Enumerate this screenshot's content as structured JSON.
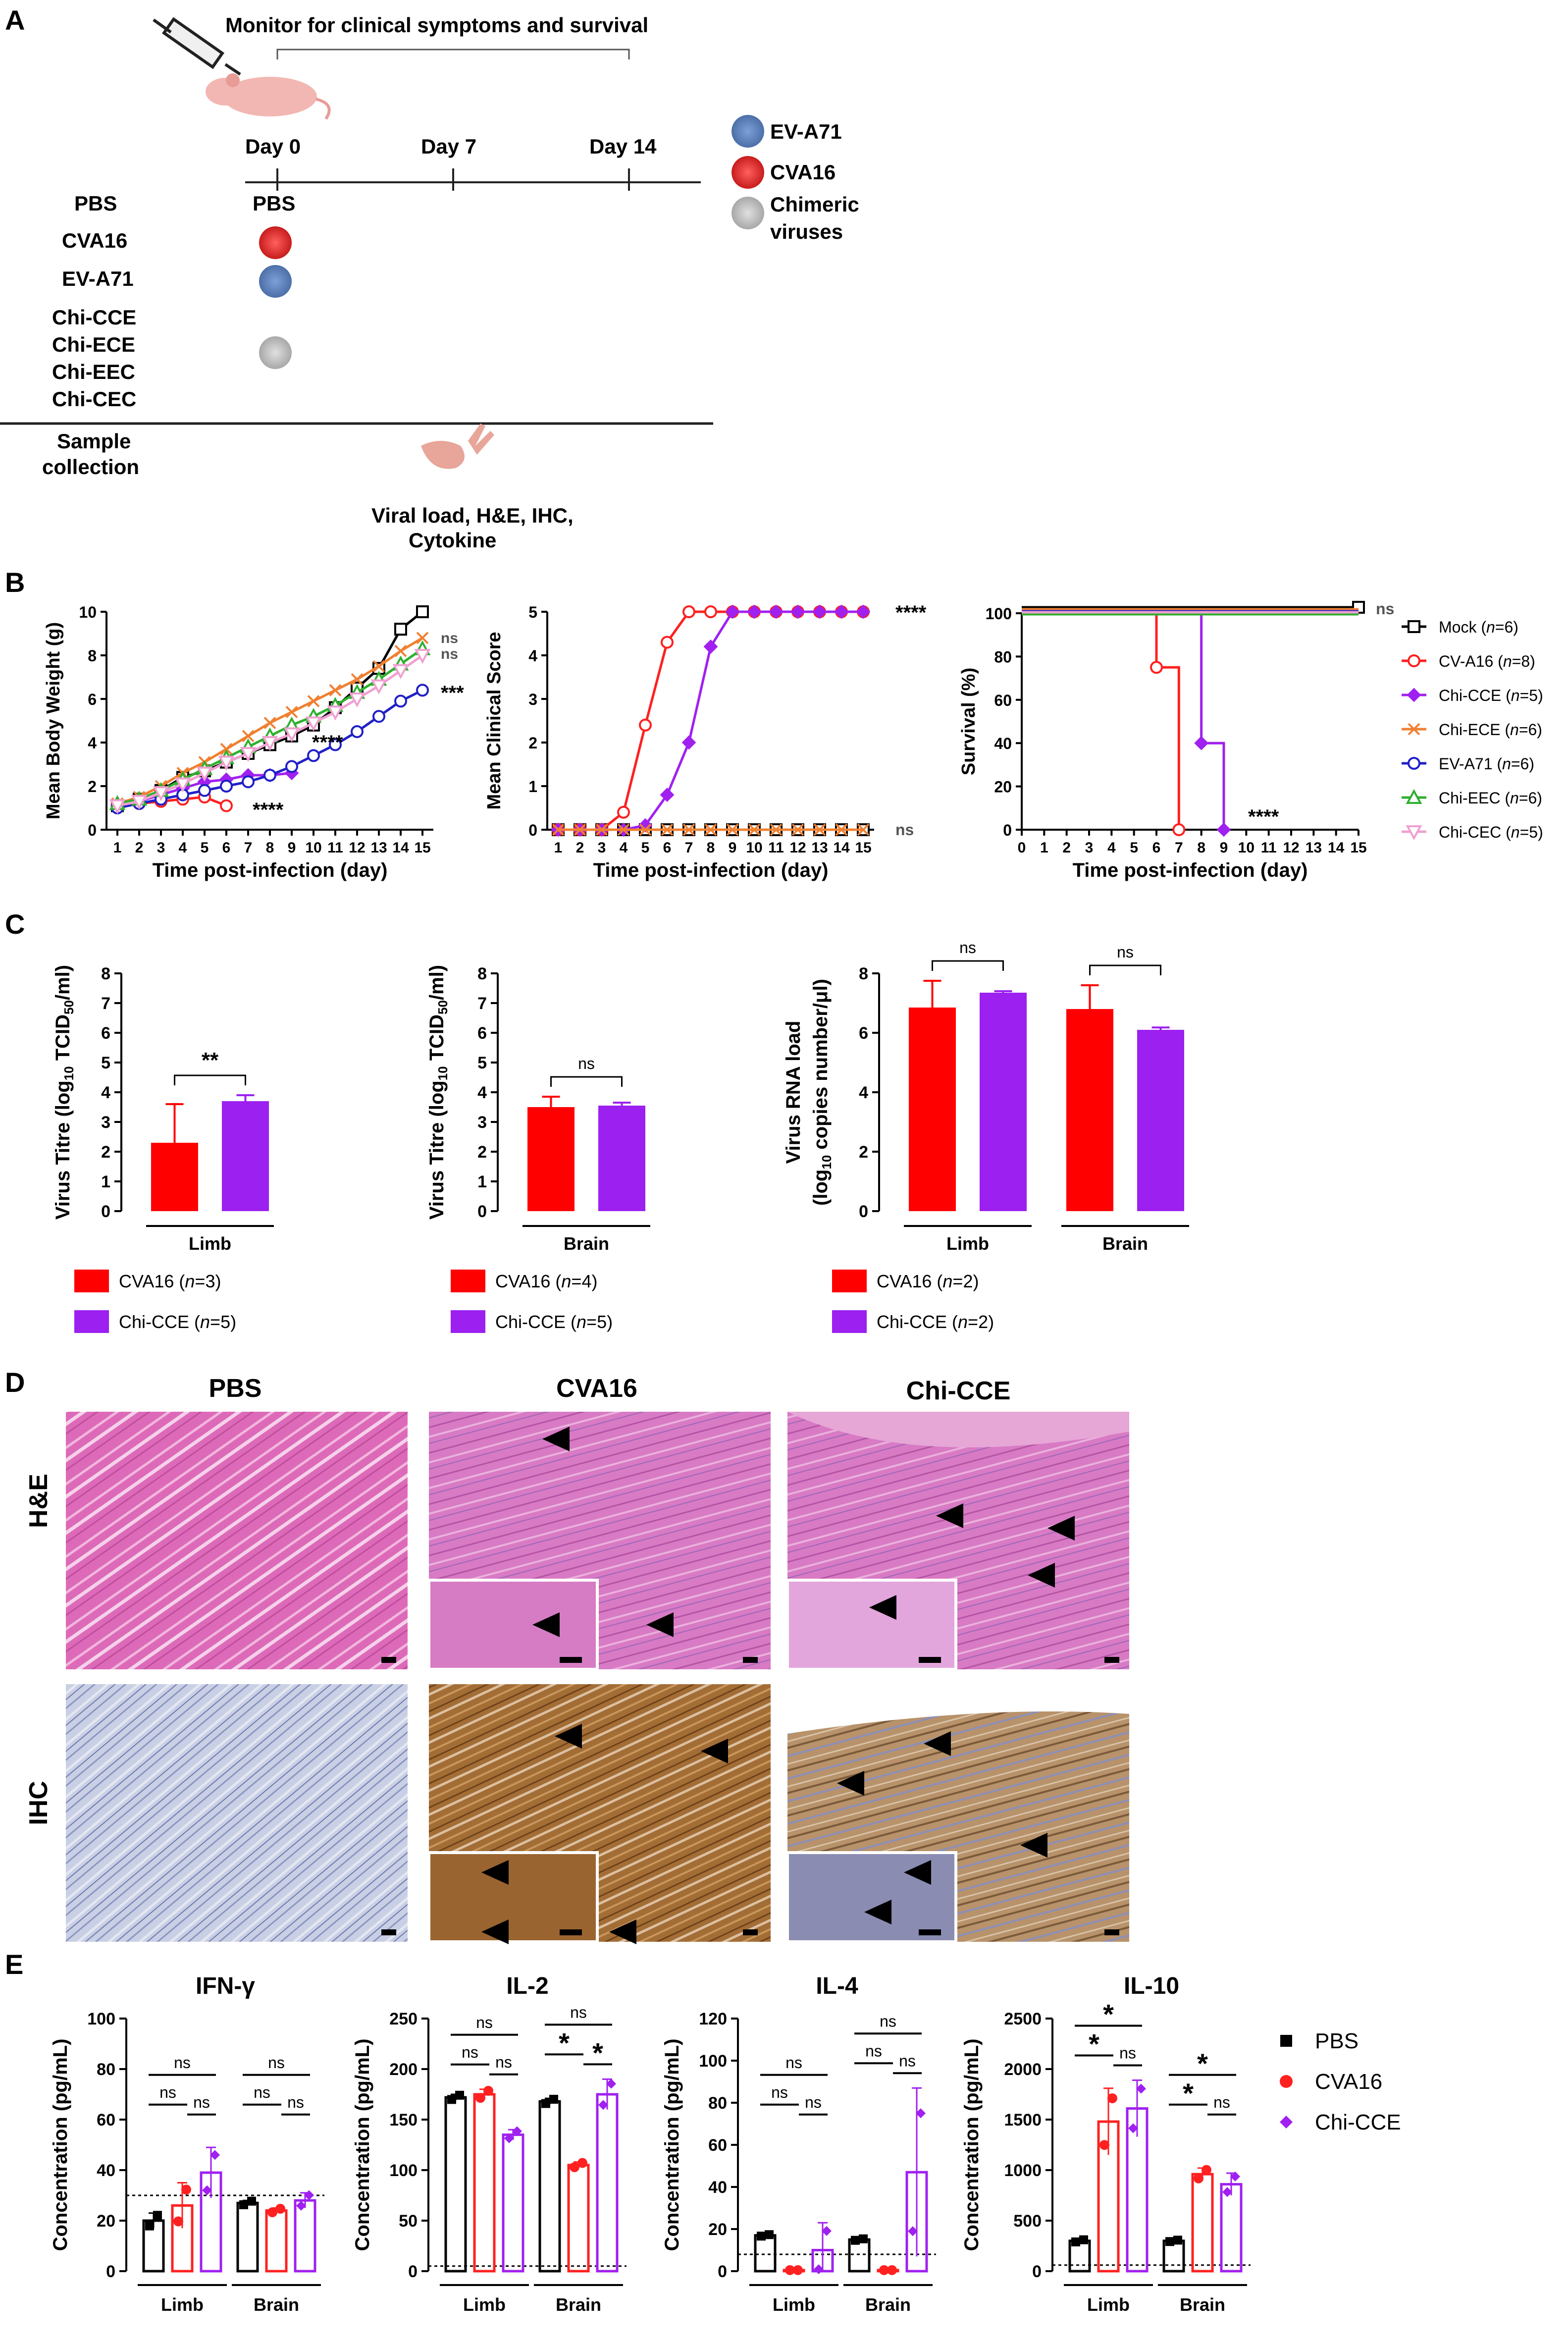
{
  "panel_labels": [
    "A",
    "B",
    "C",
    "D",
    "E"
  ],
  "colors": {
    "pbs": "#000000",
    "cva16": "#ff2020",
    "chicce": "#a020f0",
    "chiece": "#f08030",
    "ev71": "#2020c8",
    "chieec": "#30b030",
    "chicec": "#f0a0d0",
    "cva16_bar": "#ff0000",
    "chicce_bar": "#9c20f0",
    "he_pink": "#e26fbd",
    "ihc_blue": "#b8c0dc",
    "ihc_brown": "#a4703a"
  },
  "panel_a": {
    "monitor_label": "Monitor for clinical symptoms and survival",
    "days": [
      "Day 0",
      "Day 7",
      "Day 14"
    ],
    "groups": [
      "PBS",
      "CVA16",
      "EV-A71",
      "Chi-CCE",
      "Chi-ECE",
      "Chi-EEC",
      "Chi-CEC"
    ],
    "pbs_mark": "PBS",
    "legend": [
      "EV-A71",
      "CVA16",
      "Chimeric",
      "viruses"
    ],
    "sample_label": [
      "Sample",
      "collection"
    ],
    "assays": [
      "Viral load, H&E, IHC,",
      "Cytokine"
    ]
  },
  "chart_data": [
    {
      "type": "line",
      "panel": "B1",
      "ylabel": "Mean Body Weight (g)",
      "xlabel": "Time post-infection (day)",
      "ylim": [
        0,
        10
      ],
      "yticks": [
        "0",
        "2",
        "4",
        "6",
        "8",
        "10"
      ],
      "xticks": [
        "1",
        "2",
        "3",
        "4",
        "5",
        "6",
        "7",
        "8",
        "9",
        "10",
        "11",
        "12",
        "13",
        "14",
        "15"
      ],
      "series": [
        {
          "name": "Mock",
          "color": "#000000",
          "x": [
            1,
            2,
            3,
            4,
            5,
            6,
            7,
            8,
            9,
            10,
            11,
            12,
            13,
            14,
            15
          ],
          "values": [
            1.1,
            1.4,
            1.8,
            2.4,
            2.7,
            3.1,
            3.5,
            3.9,
            4.3,
            4.8,
            5.6,
            6.5,
            7.4,
            9.2,
            10.0
          ]
        },
        {
          "name": "CV-A16",
          "color": "#ff2020",
          "x": [
            1,
            2,
            3,
            4,
            5,
            6
          ],
          "values": [
            1.1,
            1.2,
            1.3,
            1.4,
            1.5,
            1.1
          ]
        },
        {
          "name": "Chi-CCE",
          "color": "#a020f0",
          "x": [
            1,
            2,
            3,
            4,
            5,
            6,
            7,
            8,
            9
          ],
          "values": [
            1.1,
            1.3,
            1.6,
            1.9,
            2.2,
            2.3,
            2.5,
            2.5,
            2.6
          ]
        },
        {
          "name": "Chi-ECE",
          "color": "#f08030",
          "x": [
            1,
            2,
            3,
            4,
            5,
            6,
            7,
            8,
            9,
            10,
            11,
            12,
            13,
            14,
            15
          ],
          "values": [
            1.2,
            1.5,
            2.0,
            2.6,
            3.1,
            3.7,
            4.3,
            4.9,
            5.4,
            5.9,
            6.4,
            6.9,
            7.5,
            8.2,
            8.8
          ]
        },
        {
          "name": "EV-A71",
          "color": "#2020c8",
          "x": [
            1,
            2,
            3,
            4,
            5,
            6,
            7,
            8,
            9,
            10,
            11,
            12,
            13,
            14,
            15
          ],
          "values": [
            1.0,
            1.2,
            1.4,
            1.6,
            1.8,
            2.0,
            2.2,
            2.5,
            2.9,
            3.4,
            3.9,
            4.5,
            5.2,
            5.9,
            6.4
          ]
        },
        {
          "name": "Chi-EEC",
          "color": "#30b030",
          "x": [
            1,
            2,
            3,
            4,
            5,
            6,
            7,
            8,
            9,
            10,
            11,
            12,
            13,
            14,
            15
          ],
          "values": [
            1.2,
            1.4,
            1.8,
            2.3,
            2.8,
            3.3,
            3.8,
            4.3,
            4.8,
            5.2,
            5.7,
            6.3,
            6.9,
            7.6,
            8.3
          ]
        },
        {
          "name": "Chi-CEC",
          "color": "#f0a0d0",
          "x": [
            1,
            2,
            3,
            4,
            5,
            6,
            7,
            8,
            9,
            10,
            11,
            12,
            13,
            14,
            15
          ],
          "values": [
            1.1,
            1.3,
            1.7,
            2.1,
            2.6,
            3.1,
            3.5,
            4.0,
            4.4,
            4.9,
            5.4,
            6.0,
            6.6,
            7.3,
            8.0
          ]
        }
      ],
      "annotations": [
        {
          "text": "ns",
          "series": "Chi-ECE"
        },
        {
          "text": "ns",
          "series": "Chi-EEC"
        },
        {
          "text": "***",
          "series": "EV-A71"
        },
        {
          "text": "****",
          "series": "Chi-CCE"
        },
        {
          "text": "****",
          "series": "CV-A16"
        }
      ]
    },
    {
      "type": "line",
      "panel": "B2",
      "ylabel": "Mean Clinical Score",
      "xlabel": "Time post-infection (day)",
      "ylim": [
        0,
        5
      ],
      "yticks": [
        "0",
        "1",
        "2",
        "3",
        "4",
        "5"
      ],
      "xticks": [
        "1",
        "2",
        "3",
        "4",
        "5",
        "6",
        "7",
        "8",
        "9",
        "10",
        "11",
        "12",
        "13",
        "14",
        "15"
      ],
      "series": [
        {
          "name": "Mock",
          "color": "#000000",
          "x": [
            1,
            2,
            3,
            4,
            5,
            6,
            7,
            8,
            9,
            10,
            11,
            12,
            13,
            14,
            15
          ],
          "values": [
            0,
            0,
            0,
            0,
            0,
            0,
            0,
            0,
            0,
            0,
            0,
            0,
            0,
            0,
            0
          ]
        },
        {
          "name": "CV-A16",
          "color": "#ff2020",
          "x": [
            1,
            2,
            3,
            4,
            5,
            6,
            7,
            8,
            9,
            10,
            11,
            12,
            13,
            14,
            15
          ],
          "values": [
            0,
            0,
            0,
            0.4,
            2.4,
            4.3,
            5,
            5,
            5,
            5,
            5,
            5,
            5,
            5,
            5
          ]
        },
        {
          "name": "Chi-CCE",
          "color": "#a020f0",
          "x": [
            1,
            2,
            3,
            4,
            5,
            6,
            7,
            8,
            9,
            10,
            11,
            12,
            13,
            14,
            15
          ],
          "values": [
            0,
            0,
            0,
            0,
            0.1,
            0.8,
            2.0,
            4.2,
            5,
            5,
            5,
            5,
            5,
            5,
            5
          ]
        },
        {
          "name": "Chi-ECE",
          "color": "#f08030",
          "x": [
            1,
            2,
            3,
            4,
            5,
            6,
            7,
            8,
            9,
            10,
            11,
            12,
            13,
            14,
            15
          ],
          "values": [
            0,
            0,
            0,
            0,
            0,
            0,
            0,
            0,
            0,
            0,
            0,
            0,
            0,
            0,
            0
          ]
        }
      ],
      "annotations": [
        {
          "text": "****",
          "series": "CV-A16"
        },
        {
          "text": "ns",
          "series": "Mock"
        }
      ]
    },
    {
      "type": "line",
      "panel": "B3",
      "ylabel": "Survival (%)",
      "xlabel": "Time post-infection (day)",
      "ylim": [
        0,
        100
      ],
      "yticks": [
        "0",
        "20",
        "40",
        "60",
        "80",
        "100"
      ],
      "xticks": [
        "0",
        "1",
        "2",
        "3",
        "4",
        "5",
        "6",
        "7",
        "8",
        "9",
        "10",
        "11",
        "12",
        "13",
        "14",
        "15"
      ],
      "series": [
        {
          "name": "Mock",
          "color": "#000000",
          "steps": [
            [
              0,
              100
            ],
            [
              15,
              100
            ]
          ]
        },
        {
          "name": "CV-A16",
          "color": "#ff2020",
          "steps": [
            [
              0,
              100
            ],
            [
              6,
              100
            ],
            [
              6,
              75
            ],
            [
              7,
              75
            ],
            [
              7,
              0
            ]
          ]
        },
        {
          "name": "Chi-CCE",
          "color": "#a020f0",
          "steps": [
            [
              0,
              100
            ],
            [
              8,
              100
            ],
            [
              8,
              40
            ],
            [
              9,
              40
            ],
            [
              9,
              0
            ]
          ]
        },
        {
          "name": "Chi-ECE",
          "color": "#f08030",
          "steps": [
            [
              0,
              100
            ],
            [
              15,
              100
            ]
          ]
        },
        {
          "name": "EV-A71",
          "color": "#2020c8",
          "steps": [
            [
              0,
              100
            ],
            [
              15,
              100
            ]
          ]
        },
        {
          "name": "Chi-EEC",
          "color": "#30b030",
          "steps": [
            [
              0,
              100
            ],
            [
              15,
              100
            ]
          ]
        },
        {
          "name": "Chi-CEC",
          "color": "#f0a0d0",
          "steps": [
            [
              0,
              100
            ],
            [
              15,
              100
            ]
          ]
        }
      ],
      "annotations": [
        {
          "text": "ns",
          "series": "Mock"
        },
        {
          "text": "****",
          "series": "Chi-CCE"
        }
      ]
    },
    {
      "type": "bar",
      "panel": "C1",
      "ylabel": "Virus Titre (log",
      "ylabel_sub": "10",
      "ylabel_mid": " TCID",
      "ylabel_sub2": "50",
      "ylabel_end": "/ml)",
      "ylim": [
        0,
        8
      ],
      "yticks": [
        "0",
        "1",
        "2",
        "3",
        "4",
        "5",
        "6",
        "7",
        "8"
      ],
      "groups": [
        "Limb"
      ],
      "series": [
        {
          "name": "CVA16",
          "n": "3",
          "values": [
            2.3
          ],
          "errors": [
            1.3
          ]
        },
        {
          "name": "Chi-CCE",
          "n": "5",
          "values": [
            3.7
          ],
          "errors": [
            0.2
          ]
        }
      ],
      "significance": [
        "**"
      ]
    },
    {
      "type": "bar",
      "panel": "C2",
      "ylabel": "Virus Titre (log",
      "ylabel_sub": "10",
      "ylabel_mid": " TCID",
      "ylabel_sub2": "50",
      "ylabel_end": "/ml)",
      "ylim": [
        0,
        8
      ],
      "yticks": [
        "0",
        "1",
        "2",
        "3",
        "4",
        "5",
        "6",
        "7",
        "8"
      ],
      "groups": [
        "Brain"
      ],
      "series": [
        {
          "name": "CVA16",
          "n": "4",
          "values": [
            3.5
          ],
          "errors": [
            0.35
          ]
        },
        {
          "name": "Chi-CCE",
          "n": "5",
          "values": [
            3.55
          ],
          "errors": [
            0.1
          ]
        }
      ],
      "significance": [
        "ns"
      ]
    },
    {
      "type": "bar",
      "panel": "C3",
      "ylabel": "Virus RNA load",
      "ylabel2": "(log",
      "ylabel2_sub": "10",
      "ylabel2_end": " copies number/μl)",
      "ylim": [
        0,
        8
      ],
      "yticks": [
        "0",
        "2",
        "4",
        "6",
        "8"
      ],
      "groups": [
        "Limb",
        "Brain"
      ],
      "series": [
        {
          "name": "CVA16",
          "n": "2",
          "values": [
            6.85,
            6.8
          ],
          "errors": [
            0.9,
            0.8
          ]
        },
        {
          "name": "Chi-CCE",
          "n": "2",
          "values": [
            7.35,
            6.1
          ],
          "errors": [
            0.05,
            0.08
          ]
        }
      ],
      "significance": [
        "ns",
        "ns"
      ]
    },
    {
      "type": "bar",
      "panel": "E1",
      "title": "IFN-γ",
      "ylabel": "Concentration (pg/mL)",
      "ylim": [
        0,
        100
      ],
      "yticks": [
        "0",
        "20",
        "40",
        "60",
        "80",
        "100"
      ],
      "threshold": 30,
      "groups": [
        "Limb",
        "Brain"
      ],
      "series": [
        {
          "name": "PBS",
          "values": [
            20,
            27
          ],
          "errors": [
            3,
            1
          ]
        },
        {
          "name": "CVA16",
          "values": [
            26,
            24
          ],
          "errors": [
            9,
            1
          ]
        },
        {
          "name": "Chi-CCE",
          "values": [
            39,
            28
          ],
          "errors": [
            10,
            3
          ]
        }
      ],
      "significance": [
        "ns",
        "ns",
        "ns",
        "ns",
        "ns",
        "ns"
      ]
    },
    {
      "type": "bar",
      "panel": "E2",
      "title": "IL-2",
      "ylabel": "Concentration (pg/mL)",
      "ylim": [
        0,
        250
      ],
      "yticks": [
        "0",
        "50",
        "100",
        "150",
        "200",
        "250"
      ],
      "threshold": 5,
      "groups": [
        "Limb",
        "Brain"
      ],
      "series": [
        {
          "name": "PBS",
          "values": [
            172,
            168
          ],
          "errors": [
            3,
            3
          ]
        },
        {
          "name": "CVA16",
          "values": [
            175,
            105
          ],
          "errors": [
            5,
            3
          ]
        },
        {
          "name": "Chi-CCE",
          "values": [
            135,
            175
          ],
          "errors": [
            5,
            15
          ]
        }
      ],
      "significance": [
        "ns",
        "ns",
        "ns",
        "ns",
        "*",
        "*"
      ]
    },
    {
      "type": "bar",
      "panel": "E3",
      "title": "IL-4",
      "ylabel": "Concentration (pg/mL)",
      "ylim": [
        0,
        120
      ],
      "yticks": [
        "0",
        "20",
        "40",
        "60",
        "80",
        "100",
        "120"
      ],
      "threshold": 8,
      "groups": [
        "Limb",
        "Brain"
      ],
      "series": [
        {
          "name": "PBS",
          "values": [
            17,
            15
          ],
          "errors": [
            0.5,
            0.5
          ]
        },
        {
          "name": "CVA16",
          "values": [
            0.5,
            0.5
          ],
          "errors": [
            0,
            0
          ]
        },
        {
          "name": "Chi-CCE",
          "values": [
            10,
            47
          ],
          "errors": [
            13,
            40
          ]
        }
      ],
      "significance": [
        "ns",
        "ns",
        "ns",
        "ns",
        "ns",
        "ns"
      ]
    },
    {
      "type": "bar",
      "panel": "E4",
      "title": "IL-10",
      "ylabel": "Concentration (pg/mL)",
      "ylim": [
        0,
        2500
      ],
      "yticks": [
        "0",
        "500",
        "1000",
        "1500",
        "2000",
        "2500"
      ],
      "threshold": 60,
      "groups": [
        "Limb",
        "Brain"
      ],
      "series": [
        {
          "name": "PBS",
          "values": [
            300,
            300
          ],
          "errors": [
            15,
            10
          ]
        },
        {
          "name": "CVA16",
          "values": [
            1480,
            960
          ],
          "errors": [
            330,
            60
          ]
        },
        {
          "name": "Chi-CCE",
          "values": [
            1610,
            860
          ],
          "errors": [
            280,
            110
          ]
        }
      ],
      "significance": [
        "*",
        "*",
        "ns",
        "*",
        "*",
        "ns"
      ]
    }
  ],
  "panel_b": {
    "legend": [
      {
        "name": "Mock",
        "n": "6"
      },
      {
        "name": "CV-A16",
        "n": "8"
      },
      {
        "name": "Chi-CCE",
        "n": "5"
      },
      {
        "name": "Chi-ECE",
        "n": "6"
      },
      {
        "name": "EV-A71",
        "n": "6"
      },
      {
        "name": "Chi-EEC",
        "n": "6"
      },
      {
        "name": "Chi-CEC",
        "n": "5"
      }
    ]
  },
  "panel_c": {
    "legend_names": [
      "CVA16",
      "Chi-CCE"
    ]
  },
  "panel_d": {
    "columns": [
      "PBS",
      "CVA16",
      "Chi-CCE"
    ],
    "rows": [
      "H&E",
      "IHC"
    ]
  },
  "panel_e": {
    "legend": [
      "PBS",
      "CVA16",
      "Chi-CCE"
    ]
  }
}
